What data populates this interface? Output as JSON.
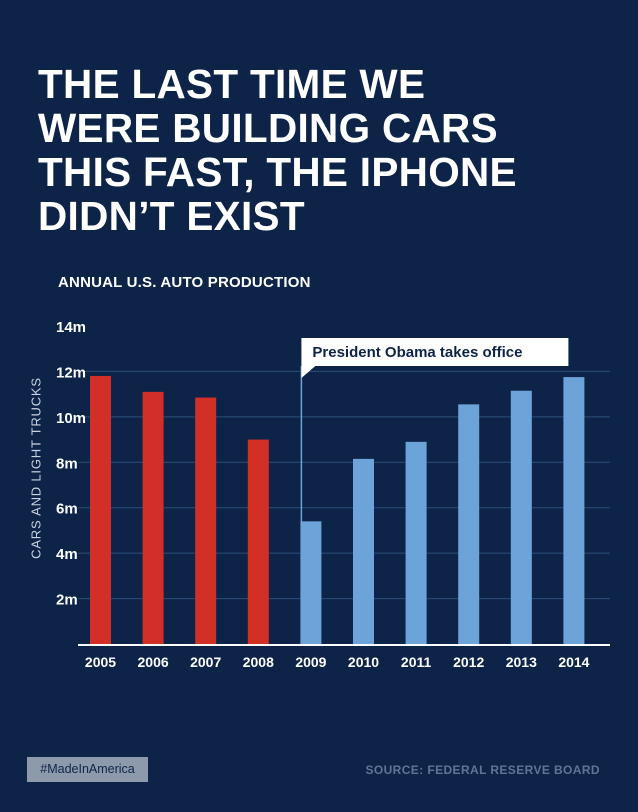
{
  "headline": {
    "lines": [
      "THE LAST TIME WE",
      "WERE BUILDING CARS",
      "THIS FAST, THE IPHONE",
      "DIDN’T EXIST"
    ]
  },
  "footer": {
    "hashtag": "#MadeInAmerica",
    "source": "SOURCE:  FEDERAL RESERVE BOARD"
  },
  "colors": {
    "background": "#0d2448",
    "before_obama": "#d22f26",
    "after_obama": "#6ca4da",
    "gridline": "#2d4d77"
  },
  "chart_data": {
    "type": "bar",
    "title": "ANNUAL U.S. AUTO PRODUCTION",
    "xlabel": "",
    "ylabel": "CARS AND LIGHT TRUCKS",
    "ylim": [
      0,
      14
    ],
    "yticks": [
      2,
      4,
      6,
      8,
      10,
      12,
      14
    ],
    "ytick_labels": [
      "2m",
      "4m",
      "6m",
      "8m",
      "10m",
      "12m",
      "14m"
    ],
    "grid": true,
    "categories": [
      "2005",
      "2006",
      "2007",
      "2008",
      "2009",
      "2010",
      "2011",
      "2012",
      "2013",
      "2014"
    ],
    "values": [
      11.8,
      11.1,
      10.85,
      9.0,
      5.4,
      8.15,
      8.9,
      10.55,
      11.15,
      11.75
    ],
    "groups": [
      "before",
      "before",
      "before",
      "before",
      "after",
      "after",
      "after",
      "after",
      "after",
      "after"
    ],
    "annotation": {
      "text": "President Obama takes office",
      "category": "2009"
    }
  }
}
